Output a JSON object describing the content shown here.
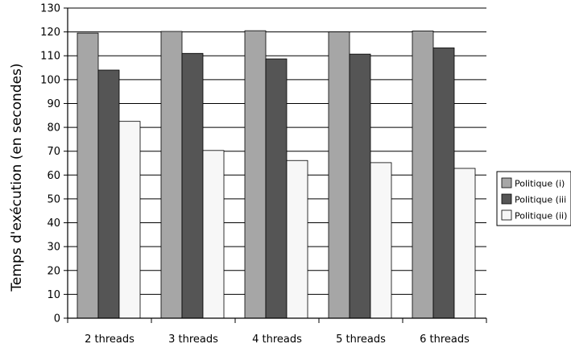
{
  "chart_data": {
    "type": "bar",
    "title": "",
    "xlabel": "",
    "ylabel": "Temps d'exécution (en secondes)",
    "ylim": [
      0,
      130
    ],
    "ytick_step": 10,
    "grid": true,
    "legend_position": "right",
    "categories": [
      "2 threads",
      "3 threads",
      "4 threads",
      "5 threads",
      "6 threads"
    ],
    "series": [
      {
        "name": "Politique (i)",
        "color": "#a6a6a6",
        "values": [
          119.5,
          120.2,
          120.5,
          120.0,
          120.4
        ]
      },
      {
        "name": "Politique (iii",
        "color": "#555555",
        "values": [
          104.0,
          111.0,
          108.7,
          110.7,
          113.3
        ]
      },
      {
        "name": "Politique (ii)",
        "color": "#f7f7f7",
        "values": [
          82.5,
          70.3,
          66.1,
          65.2,
          62.8
        ]
      }
    ]
  }
}
